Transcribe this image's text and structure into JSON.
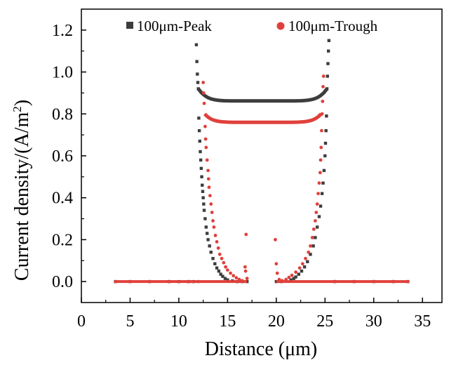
{
  "chart_data": {
    "type": "scatter",
    "xlabel": "Distance (μm)",
    "ylabel_main": "Current density/(A/m",
    "ylabel_sup": "2",
    "ylabel_close": ")",
    "xlim": [
      0,
      37
    ],
    "ylim": [
      -0.1,
      1.3
    ],
    "x_ticks": [
      0,
      5,
      10,
      15,
      20,
      25,
      30,
      35
    ],
    "x_tick_labels": [
      "0",
      "5",
      "10",
      "15",
      "20",
      "25",
      "30",
      "35"
    ],
    "y_ticks": [
      0.0,
      0.2,
      0.4,
      0.6,
      0.8,
      1.0,
      1.2
    ],
    "y_tick_labels": [
      "0.0",
      "0.2",
      "0.4",
      "0.6",
      "0.8",
      "1.0",
      "1.2"
    ],
    "grid": false,
    "legend_position": "top",
    "series": [
      {
        "name": "100μm-Peak",
        "color": "#3d3d3d",
        "marker": "square",
        "points": [
          [
            3.5,
            0
          ],
          [
            5,
            0
          ],
          [
            7,
            0
          ],
          [
            9,
            0
          ],
          [
            10,
            0
          ],
          [
            11,
            0
          ],
          [
            11.5,
            0
          ],
          [
            11.8,
            1.13
          ],
          [
            11.85,
            1.05
          ],
          [
            11.9,
            0.99
          ],
          [
            11.95,
            0.95
          ],
          [
            12.0,
            0.92
          ],
          [
            12.05,
            0.78
          ],
          [
            12.1,
            0.72
          ],
          [
            12.15,
            0.67
          ],
          [
            12.2,
            0.62
          ],
          [
            12.25,
            0.58
          ],
          [
            12.3,
            0.54
          ],
          [
            12.35,
            0.5
          ],
          [
            12.4,
            0.46
          ],
          [
            12.45,
            0.43
          ],
          [
            12.5,
            0.4
          ],
          [
            12.55,
            0.37
          ],
          [
            12.6,
            0.34
          ],
          [
            12.7,
            0.3
          ],
          [
            12.8,
            0.26
          ],
          [
            12.9,
            0.23
          ],
          [
            13.0,
            0.2
          ],
          [
            13.15,
            0.17
          ],
          [
            13.3,
            0.14
          ],
          [
            13.5,
            0.11
          ],
          [
            13.7,
            0.085
          ],
          [
            13.9,
            0.065
          ],
          [
            14.1,
            0.05
          ],
          [
            14.3,
            0.035
          ],
          [
            14.5,
            0.025
          ],
          [
            14.75,
            0.015
          ],
          [
            15.0,
            0.008
          ],
          [
            15.5,
            0.003
          ],
          [
            16.0,
            0
          ],
          [
            16.5,
            0
          ],
          [
            17.0,
            0
          ],
          [
            20.0,
            0
          ],
          [
            20.5,
            0
          ],
          [
            21.0,
            0.003
          ],
          [
            21.5,
            0.008
          ],
          [
            21.8,
            0.015
          ],
          [
            22.0,
            0.022
          ],
          [
            22.3,
            0.035
          ],
          [
            22.6,
            0.05
          ],
          [
            22.9,
            0.07
          ],
          [
            23.2,
            0.095
          ],
          [
            23.5,
            0.13
          ],
          [
            23.8,
            0.17
          ],
          [
            24.0,
            0.21
          ],
          [
            24.2,
            0.26
          ],
          [
            24.4,
            0.31
          ],
          [
            24.55,
            0.36
          ],
          [
            24.7,
            0.42
          ],
          [
            24.8,
            0.47
          ],
          [
            24.9,
            0.53
          ],
          [
            25.0,
            0.6
          ],
          [
            25.05,
            0.66
          ],
          [
            25.1,
            0.72
          ],
          [
            25.15,
            0.79
          ],
          [
            25.2,
            0.92
          ],
          [
            25.25,
            0.98
          ],
          [
            25.3,
            1.04
          ],
          [
            25.35,
            1.1
          ],
          [
            25.4,
            1.15
          ],
          [
            26,
            0
          ],
          [
            28,
            0
          ],
          [
            30,
            0
          ],
          [
            32,
            0
          ],
          [
            33.5,
            0
          ]
        ],
        "segments": [
          {
            "x_from": 12.0,
            "x_to": 25.2,
            "y_edge": 0.92,
            "y_mid": 0.862
          }
        ]
      },
      {
        "name": "100μm-Trough",
        "color": "#e0403c",
        "marker": "circle",
        "points": [
          [
            3.5,
            0
          ],
          [
            5,
            0
          ],
          [
            7,
            0
          ],
          [
            9,
            0
          ],
          [
            11,
            0
          ],
          [
            12,
            0
          ],
          [
            12.5,
            0.95
          ],
          [
            12.55,
            0.9
          ],
          [
            12.6,
            0.85
          ],
          [
            12.7,
            0.74
          ],
          [
            12.75,
            0.68
          ],
          [
            12.8,
            0.64
          ],
          [
            12.9,
            0.58
          ],
          [
            13.0,
            0.53
          ],
          [
            13.05,
            0.49
          ],
          [
            13.1,
            0.45
          ],
          [
            13.2,
            0.41
          ],
          [
            13.3,
            0.37
          ],
          [
            13.4,
            0.33
          ],
          [
            13.5,
            0.29
          ],
          [
            13.6,
            0.26
          ],
          [
            13.75,
            0.22
          ],
          [
            13.9,
            0.19
          ],
          [
            14.05,
            0.16
          ],
          [
            14.2,
            0.13
          ],
          [
            14.4,
            0.11
          ],
          [
            14.6,
            0.09
          ],
          [
            14.8,
            0.07
          ],
          [
            15.0,
            0.055
          ],
          [
            15.3,
            0.04
          ],
          [
            15.6,
            0.028
          ],
          [
            15.9,
            0.018
          ],
          [
            16.2,
            0.01
          ],
          [
            16.5,
            0.004
          ],
          [
            16.8,
            0.07
          ],
          [
            16.85,
            0.05
          ],
          [
            16.9,
            0.225
          ],
          [
            17.0,
            0.015
          ],
          [
            19.9,
            0.2
          ],
          [
            20.0,
            0.085
          ],
          [
            20.1,
            0.04
          ],
          [
            20.3,
            0.01
          ],
          [
            20.6,
            0.004
          ],
          [
            21.0,
            0.01
          ],
          [
            21.3,
            0.02
          ],
          [
            21.6,
            0.03
          ],
          [
            22.0,
            0.045
          ],
          [
            22.4,
            0.065
          ],
          [
            22.7,
            0.085
          ],
          [
            23.0,
            0.11
          ],
          [
            23.3,
            0.14
          ],
          [
            23.5,
            0.17
          ],
          [
            23.7,
            0.21
          ],
          [
            23.85,
            0.25
          ],
          [
            24.0,
            0.29
          ],
          [
            24.1,
            0.33
          ],
          [
            24.2,
            0.37
          ],
          [
            24.3,
            0.42
          ],
          [
            24.4,
            0.47
          ],
          [
            24.5,
            0.52
          ],
          [
            24.55,
            0.58
          ],
          [
            24.6,
            0.64
          ],
          [
            24.65,
            0.72
          ],
          [
            24.7,
            0.8
          ],
          [
            24.75,
            0.86
          ],
          [
            24.8,
            0.93
          ],
          [
            24.85,
            0.98
          ],
          [
            26,
            0
          ],
          [
            28,
            0
          ],
          [
            30,
            0
          ],
          [
            32,
            0
          ],
          [
            33.5,
            0
          ]
        ],
        "segments": [
          {
            "x_from": 12.65,
            "x_to": 24.6,
            "y_edge": 0.8,
            "y_mid": 0.76
          }
        ]
      }
    ],
    "baselines": [
      {
        "series": 1,
        "x_from": 3.5,
        "x_to": 17.0
      },
      {
        "series": 1,
        "x_from": 20.0,
        "x_to": 33.5
      }
    ]
  }
}
